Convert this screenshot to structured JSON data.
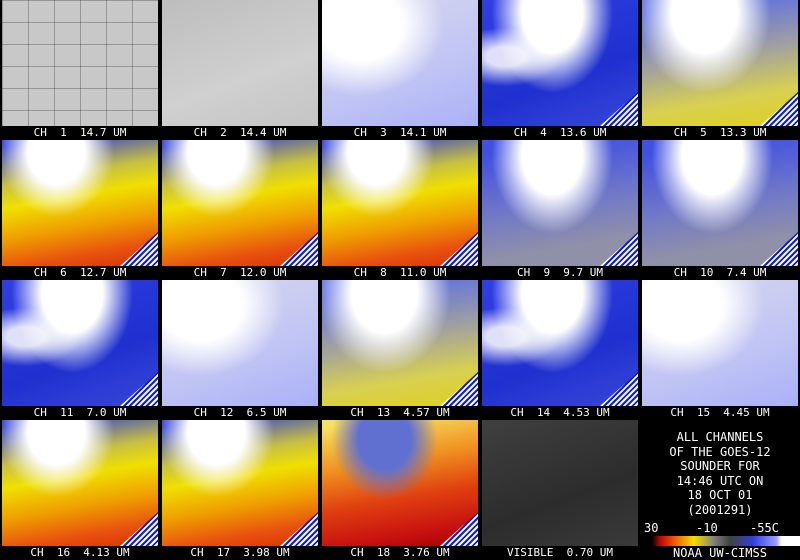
{
  "panels": [
    {
      "label": "CH  1  14.7 UM"
    },
    {
      "label": "CH  2  14.4 UM"
    },
    {
      "label": "CH  3  14.1 UM"
    },
    {
      "label": "CH  4  13.6 UM"
    },
    {
      "label": "CH  5  13.3 UM"
    },
    {
      "label": "CH  6  12.7 UM"
    },
    {
      "label": "CH  7  12.0 UM"
    },
    {
      "label": "CH  8  11.0 UM"
    },
    {
      "label": "CH  9  9.7 UM"
    },
    {
      "label": "CH  10  7.4 UM"
    },
    {
      "label": "CH  11  7.0 UM"
    },
    {
      "label": "CH  12  6.5 UM"
    },
    {
      "label": "CH  13  4.57 UM"
    },
    {
      "label": "CH  14  4.53 UM"
    },
    {
      "label": "CH  15  4.45 UM"
    },
    {
      "label": "CH  16  4.13 UM"
    },
    {
      "label": "CH  17  3.98 UM"
    },
    {
      "label": "CH  18  3.76 UM"
    },
    {
      "label": "VISIBLE  0.70 UM"
    }
  ],
  "info": {
    "lines": [
      "ALL CHANNELS",
      "OF THE GOES-12",
      "SOUNDER FOR",
      "14:46 UTC ON",
      "18 OCT 01",
      "(2001291)"
    ]
  },
  "colorbar": {
    "labels": [
      "30",
      "-10",
      "-55C"
    ]
  },
  "credit": "NOAA UW-CIMSS"
}
